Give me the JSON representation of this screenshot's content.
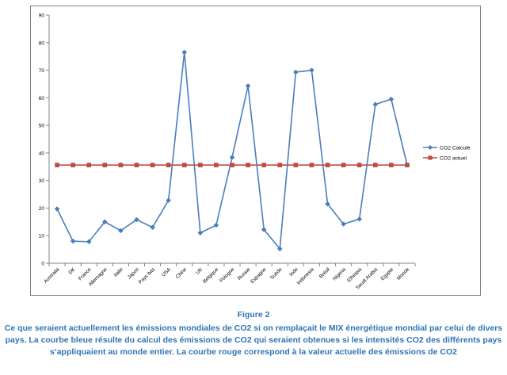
{
  "chart_data": {
    "type": "line",
    "title": "",
    "xlabel": "",
    "ylabel": "",
    "ylim": [
      0,
      90
    ],
    "yticks": [
      0,
      10,
      20,
      30,
      40,
      50,
      60,
      70,
      80,
      90
    ],
    "grid": false,
    "legend_position": "right",
    "categories": [
      "Australia",
      "DK",
      "France",
      "Allemagne",
      "Italie",
      "Japon",
      "Pays bas",
      "USA",
      "Chine",
      "UK",
      "Belgique",
      "Pologne",
      "Russie",
      "Espagne",
      "Suède",
      "Inde",
      "Indonesia",
      "Brésil",
      "Nigeria",
      "Ethiopia",
      "Saudi Arabia",
      "Egypte",
      "Monde"
    ],
    "series": [
      {
        "name": "CO2 Calculé",
        "color": "#4a7ebb",
        "marker": "diamond",
        "values": [
          19.7,
          8.0,
          7.8,
          15.0,
          11.8,
          15.8,
          13.0,
          22.8,
          76.5,
          11.0,
          13.8,
          38.4,
          64.3,
          12.2,
          5.2,
          69.3,
          70.0,
          21.5,
          14.2,
          16.0,
          57.6,
          59.5,
          35.6
        ]
      },
      {
        "name": "CO2 actuel",
        "color": "#be4b48",
        "marker": "square",
        "values": [
          35.6,
          35.6,
          35.6,
          35.6,
          35.6,
          35.6,
          35.6,
          35.6,
          35.6,
          35.6,
          35.6,
          35.6,
          35.6,
          35.6,
          35.6,
          35.6,
          35.6,
          35.6,
          35.6,
          35.6,
          35.6,
          35.6,
          35.6
        ]
      }
    ]
  },
  "figure": {
    "label": "Figure 2",
    "caption": "Ce que seraient actuellement les émissions mondiales de CO2 si on remplaçait le MIX énergétique mondial par celui de divers pays. La courbe bleue résulte du calcul des émissions de CO2 qui seraient obtenues si les intensités CO2 des différents pays s’appliquaient au monde entier. La courbe rouge correspond à la valeur actuelle des émissions de CO2"
  }
}
